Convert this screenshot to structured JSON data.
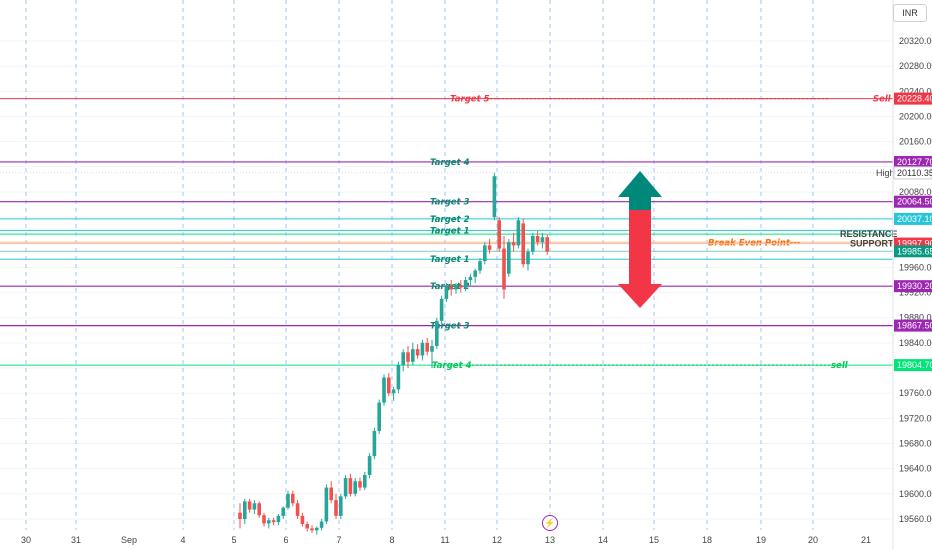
{
  "currency": "INR",
  "colors": {
    "up": "#26a69a",
    "down": "#ef5350",
    "purple": "#9c27b0",
    "red_line": "#f23645",
    "green_line": "#00e676",
    "cyan": "#26c6da",
    "arrow_up": "#00897b",
    "arrow_down": "#f23645"
  },
  "chart_data": {
    "type": "candlestick",
    "ylim": [
      19540,
      20345
    ],
    "y_ticks": [
      19560,
      19600,
      19640,
      19680,
      19720,
      19760,
      19800,
      19840,
      19880,
      19920,
      19960,
      20000,
      20040,
      20080,
      20120,
      20160,
      20200,
      20240,
      20280,
      20320
    ],
    "x_ticks": [
      "30",
      "31",
      "Sep",
      "4",
      "5",
      "6",
      "7",
      "8",
      "11",
      "12",
      "13",
      "14",
      "15",
      "18",
      "19",
      "20",
      "21"
    ],
    "levels": [
      {
        "label": "Target 5",
        "value": 20228.4,
        "tag": "Sell",
        "box": "20228.40",
        "style": "red"
      },
      {
        "label": "Target 4",
        "value": 20127.7,
        "box": "20127.70",
        "style": "purple"
      },
      {
        "label": "",
        "value": 20110.35,
        "tag": "High",
        "box": "20110.35",
        "style": "high"
      },
      {
        "label": "Target 3",
        "value": 20064.5,
        "box": "20064.50",
        "style": "purple"
      },
      {
        "label": "Target 2",
        "value": 20037.1,
        "box": "20037.10",
        "style": "cyan"
      },
      {
        "label": "Target 1",
        "value": 20018.9,
        "style": "cyan"
      },
      {
        "label": "",
        "value": 20013,
        "tag": "RESISTANCE",
        "style": "green"
      },
      {
        "label": "Break Even Point",
        "value": 20000,
        "style": "orange"
      },
      {
        "label": "",
        "value": 19997.9,
        "tag": "SUPPORT",
        "box": "19997.90",
        "style": "red_box"
      },
      {
        "label": "",
        "value": 19985.65,
        "box": "19985.65",
        "style": "teal_box"
      },
      {
        "label": "Target 1",
        "value": 19973,
        "style": "cyan"
      },
      {
        "label": "Target 2",
        "value": 19930.2,
        "box": "19930.20",
        "style": "purple"
      },
      {
        "label": "Target 3",
        "value": 19867.5,
        "box": "19867.50",
        "style": "purple"
      },
      {
        "label": "Target 4",
        "value": 19804.7,
        "tag": "sell",
        "box": "19804.70",
        "style": "green"
      }
    ],
    "candles": [
      {
        "o": 19570,
        "h": 19585,
        "l": 19545,
        "c": 19560
      },
      {
        "o": 19560,
        "h": 19592,
        "l": 19552,
        "c": 19588
      },
      {
        "o": 19588,
        "h": 19592,
        "l": 19570,
        "c": 19575
      },
      {
        "o": 19575,
        "h": 19590,
        "l": 19568,
        "c": 19585
      },
      {
        "o": 19585,
        "h": 19588,
        "l": 19562,
        "c": 19566
      },
      {
        "o": 19566,
        "h": 19570,
        "l": 19548,
        "c": 19553
      },
      {
        "o": 19553,
        "h": 19562,
        "l": 19545,
        "c": 19558
      },
      {
        "o": 19558,
        "h": 19562,
        "l": 19550,
        "c": 19555
      },
      {
        "o": 19555,
        "h": 19568,
        "l": 19550,
        "c": 19565
      },
      {
        "o": 19565,
        "h": 19580,
        "l": 19560,
        "c": 19578
      },
      {
        "o": 19578,
        "h": 19605,
        "l": 19575,
        "c": 19600
      },
      {
        "o": 19600,
        "h": 19605,
        "l": 19580,
        "c": 19585
      },
      {
        "o": 19585,
        "h": 19590,
        "l": 19560,
        "c": 19565
      },
      {
        "o": 19565,
        "h": 19570,
        "l": 19548,
        "c": 19552
      },
      {
        "o": 19552,
        "h": 19556,
        "l": 19540,
        "c": 19545
      },
      {
        "o": 19545,
        "h": 19550,
        "l": 19538,
        "c": 19542
      },
      {
        "o": 19542,
        "h": 19548,
        "l": 19535,
        "c": 19546
      },
      {
        "o": 19546,
        "h": 19560,
        "l": 19542,
        "c": 19556
      },
      {
        "o": 19556,
        "h": 19615,
        "l": 19552,
        "c": 19610
      },
      {
        "o": 19610,
        "h": 19620,
        "l": 19585,
        "c": 19590
      },
      {
        "o": 19590,
        "h": 19600,
        "l": 19560,
        "c": 19565
      },
      {
        "o": 19565,
        "h": 19600,
        "l": 19560,
        "c": 19596
      },
      {
        "o": 19596,
        "h": 19630,
        "l": 19592,
        "c": 19625
      },
      {
        "o": 19625,
        "h": 19632,
        "l": 19596,
        "c": 19600
      },
      {
        "o": 19600,
        "h": 19625,
        "l": 19596,
        "c": 19620
      },
      {
        "o": 19620,
        "h": 19626,
        "l": 19605,
        "c": 19610
      },
      {
        "o": 19610,
        "h": 19635,
        "l": 19606,
        "c": 19630
      },
      {
        "o": 19630,
        "h": 19665,
        "l": 19625,
        "c": 19660
      },
      {
        "o": 19660,
        "h": 19705,
        "l": 19655,
        "c": 19700
      },
      {
        "o": 19700,
        "h": 19750,
        "l": 19695,
        "c": 19745
      },
      {
        "o": 19745,
        "h": 19790,
        "l": 19740,
        "c": 19785
      },
      {
        "o": 19785,
        "h": 19792,
        "l": 19755,
        "c": 19760
      },
      {
        "o": 19760,
        "h": 19770,
        "l": 19748,
        "c": 19766
      },
      {
        "o": 19766,
        "h": 19810,
        "l": 19760,
        "c": 19805
      },
      {
        "o": 19805,
        "h": 19830,
        "l": 19795,
        "c": 19825
      },
      {
        "o": 19825,
        "h": 19835,
        "l": 19800,
        "c": 19810
      },
      {
        "o": 19810,
        "h": 19840,
        "l": 19805,
        "c": 19830
      },
      {
        "o": 19830,
        "h": 19838,
        "l": 19815,
        "c": 19820
      },
      {
        "o": 19820,
        "h": 19845,
        "l": 19812,
        "c": 19840
      },
      {
        "o": 19840,
        "h": 19848,
        "l": 19820,
        "c": 19826
      },
      {
        "o": 19826,
        "h": 19845,
        "l": 19800,
        "c": 19835
      },
      {
        "o": 19835,
        "h": 19880,
        "l": 19830,
        "c": 19875
      },
      {
        "o": 19875,
        "h": 19915,
        "l": 19870,
        "c": 19910
      },
      {
        "o": 19910,
        "h": 19935,
        "l": 19905,
        "c": 19930
      },
      {
        "o": 19930,
        "h": 19940,
        "l": 19915,
        "c": 19925
      },
      {
        "o": 19925,
        "h": 19935,
        "l": 19918,
        "c": 19932
      },
      {
        "o": 19932,
        "h": 19940,
        "l": 19920,
        "c": 19928
      },
      {
        "o": 19928,
        "h": 19945,
        "l": 19922,
        "c": 19940
      },
      {
        "o": 19940,
        "h": 19950,
        "l": 19930,
        "c": 19945
      },
      {
        "o": 19945,
        "h": 19958,
        "l": 19935,
        "c": 19955
      },
      {
        "o": 19955,
        "h": 19975,
        "l": 19950,
        "c": 19970
      },
      {
        "o": 19970,
        "h": 20000,
        "l": 19965,
        "c": 19995
      },
      {
        "o": 19995,
        "h": 20005,
        "l": 19982,
        "c": 19988
      },
      {
        "o": 20040,
        "h": 20110,
        "l": 20035,
        "c": 20105
      },
      {
        "o": 20035,
        "h": 20040,
        "l": 19985,
        "c": 19990
      },
      {
        "o": 19990,
        "h": 20010,
        "l": 19910,
        "c": 19925
      },
      {
        "o": 19950,
        "h": 20005,
        "l": 19945,
        "c": 20000
      },
      {
        "o": 20000,
        "h": 20015,
        "l": 19985,
        "c": 19995
      },
      {
        "o": 19995,
        "h": 20040,
        "l": 19990,
        "c": 20035
      },
      {
        "o": 20030,
        "h": 20038,
        "l": 19960,
        "c": 19965
      },
      {
        "o": 19965,
        "h": 19990,
        "l": 19955,
        "c": 19985
      },
      {
        "o": 19985,
        "h": 20015,
        "l": 19980,
        "c": 20010
      },
      {
        "o": 20010,
        "h": 20018,
        "l": 19995,
        "c": 20000
      },
      {
        "o": 20000,
        "h": 20015,
        "l": 19990,
        "c": 20008
      },
      {
        "o": 20008,
        "h": 20012,
        "l": 19980,
        "c": 19985
      }
    ]
  }
}
